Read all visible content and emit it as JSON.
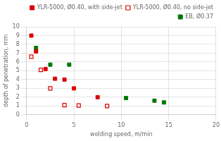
{
  "chart_data": {
    "type": "scatter",
    "xlabel": "welding speed, m/min",
    "ylabel": "depth of penetration, mm",
    "series": [
      {
        "name": "YLR-5000, Ø0.40, with side-jet",
        "color": "#dd0000",
        "marker": "square",
        "x": [
          0.5,
          1.0,
          2.0,
          3.0,
          4.0,
          5.0,
          7.5
        ],
        "values": [
          9.0,
          7.2,
          5.2,
          4.1,
          4.0,
          3.0,
          2.0
        ]
      },
      {
        "name": "YLR-5000, Ø0.40, no side-jet",
        "color": "#dd0000",
        "marker": "square-open",
        "x": [
          0.5,
          1.5,
          2.5,
          4.0,
          5.5,
          8.5
        ],
        "values": [
          6.6,
          5.1,
          3.0,
          1.1,
          1.05,
          1.0
        ]
      },
      {
        "name": "EB, Ø0.37",
        "color": "#007700",
        "marker": "square",
        "x": [
          1.0,
          2.5,
          4.5,
          10.5,
          13.5,
          14.5
        ],
        "values": [
          7.6,
          5.7,
          5.7,
          1.9,
          1.6,
          1.4
        ]
      }
    ],
    "xlim": [
      0,
      20
    ],
    "ylim": [
      0,
      10
    ],
    "xticks": [
      0,
      5,
      10,
      15,
      20
    ],
    "yticks": [
      0,
      1,
      2,
      3,
      4,
      5,
      6,
      7,
      8,
      9,
      10
    ],
    "grid": true,
    "legend": "upper right"
  }
}
